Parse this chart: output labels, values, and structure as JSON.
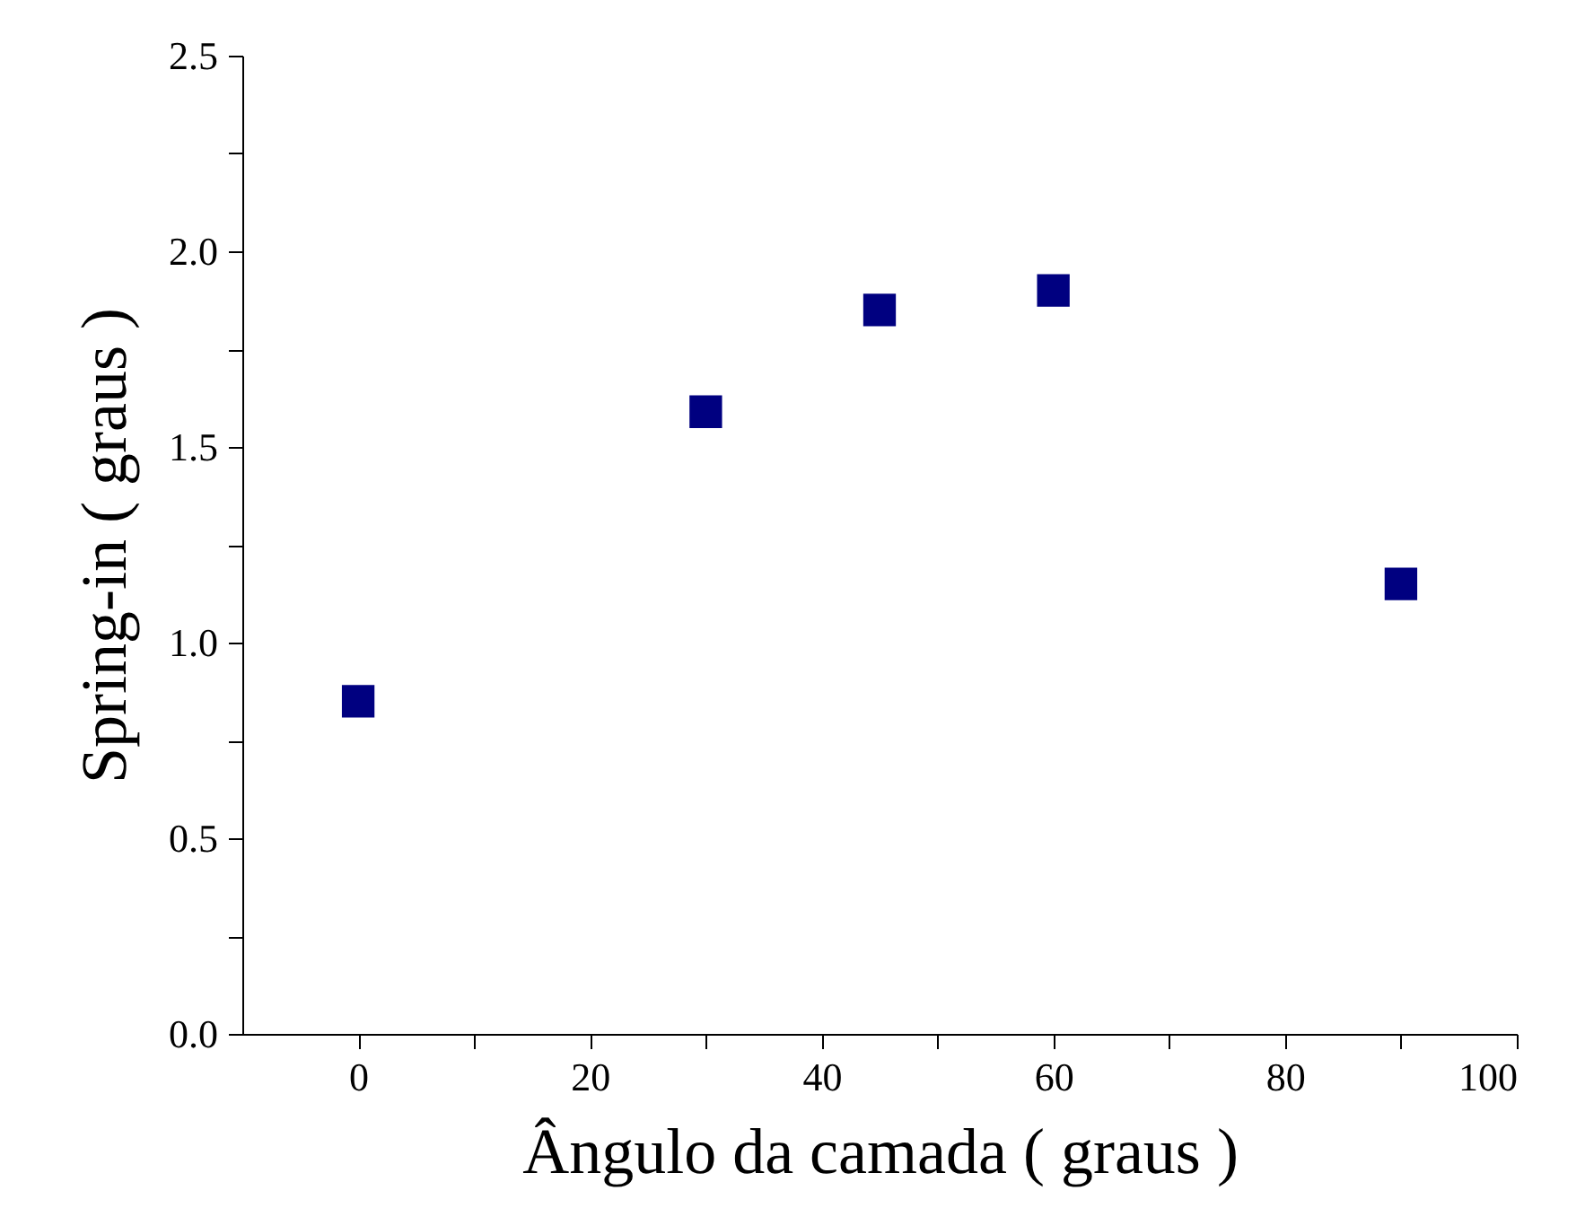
{
  "chart_data": {
    "type": "scatter",
    "x": [
      0,
      30,
      45,
      60,
      90
    ],
    "series": [
      {
        "color": "#000080",
        "values": [
          0.85,
          1.59,
          1.85,
          1.9,
          1.15
        ]
      }
    ],
    "xlabel": "Ângulo da camada ( graus )",
    "ylabel": "Spring-in  ( graus )",
    "xlim": [
      -10,
      100
    ],
    "ylim": [
      0,
      2.5
    ],
    "xticks": [
      0,
      {
        "value": 10,
        "label": null
      },
      20,
      {
        "value": 30,
        "label": null
      },
      40,
      {
        "value": 50,
        "label": null
      },
      60,
      {
        "value": 70,
        "label": null
      },
      80,
      {
        "value": 90,
        "label": null
      },
      100
    ],
    "yticks": [
      {
        "value": 0,
        "label": "0.0"
      },
      {
        "value": 0.25,
        "label": null
      },
      {
        "value": 0.5,
        "label": "0.5"
      },
      {
        "value": 0.75,
        "label": null
      },
      {
        "value": 1,
        "label": "1.0"
      },
      {
        "value": 1.25,
        "label": null
      },
      {
        "value": 1.5,
        "label": "1.5"
      },
      {
        "value": 1.75,
        "label": null
      },
      {
        "value": 2,
        "label": "2.0"
      },
      {
        "value": 2.25,
        "label": null
      },
      {
        "value": 2.5,
        "label": "2.5"
      }
    ],
    "marker": "square",
    "grid": false
  }
}
